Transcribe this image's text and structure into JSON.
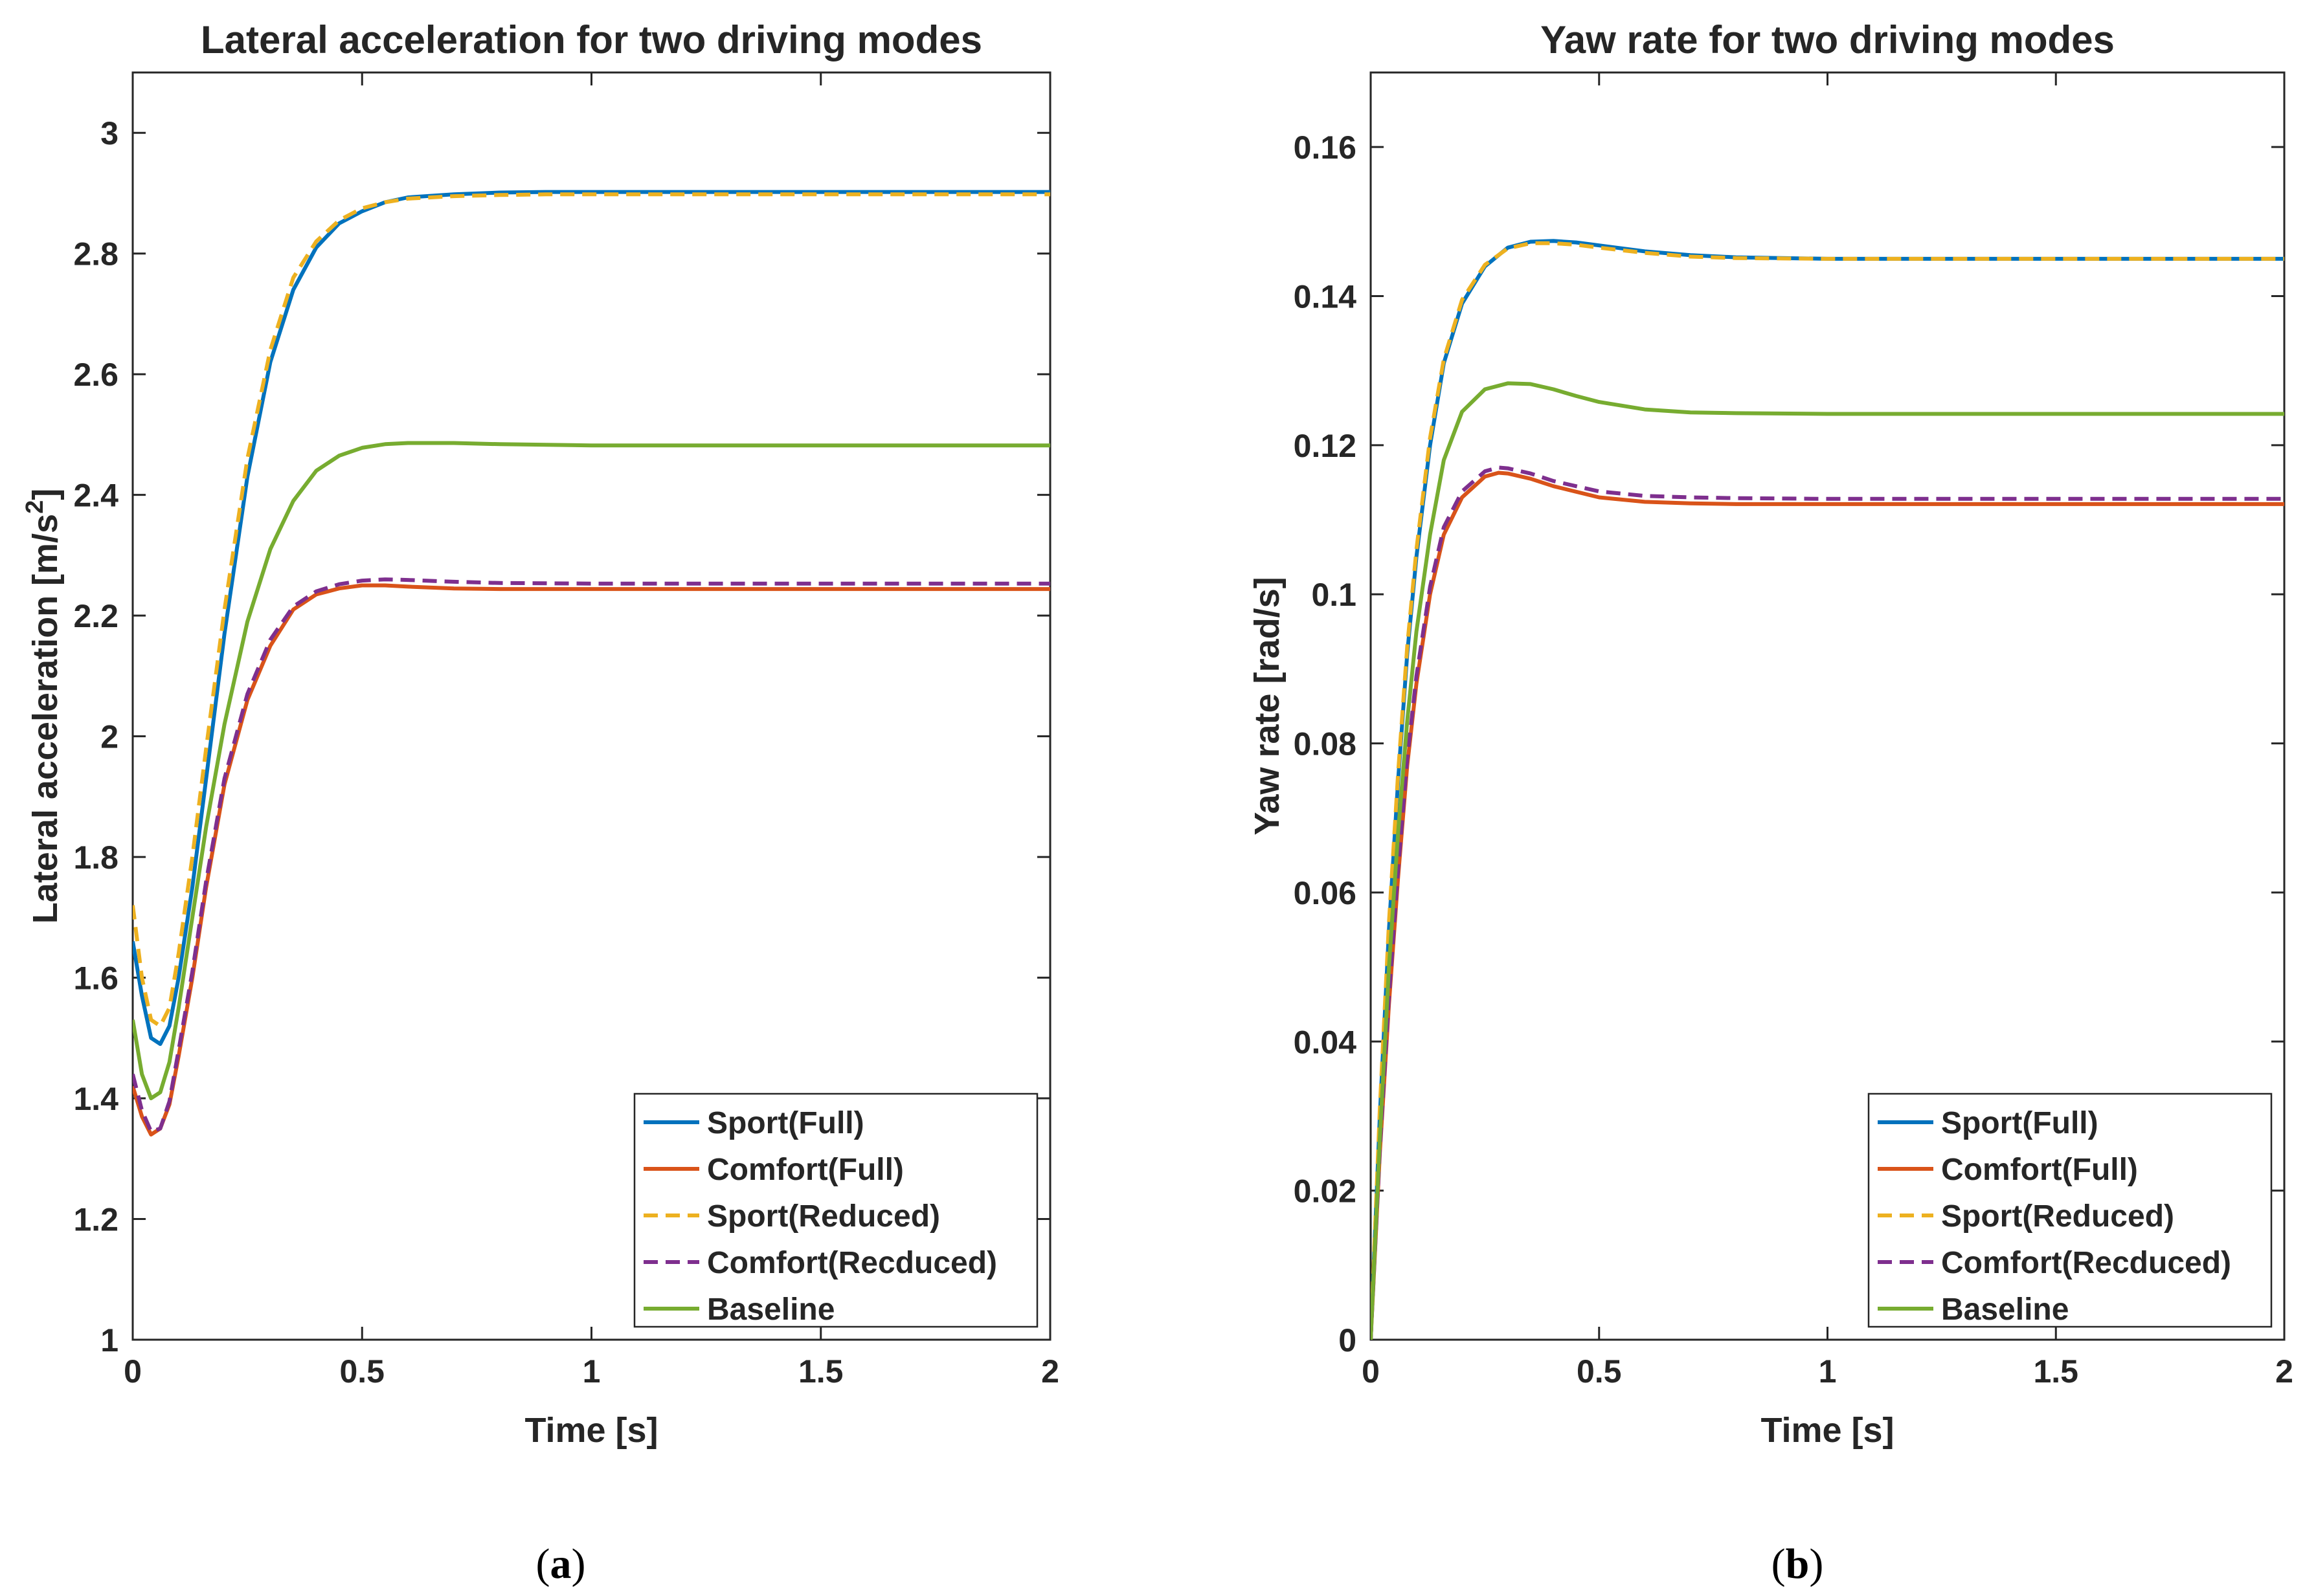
{
  "colors": {
    "sport_full": "#0072BD",
    "comfort_full": "#D95319",
    "sport_reduced": "#EDB120",
    "comfort_reduced": "#7E2F8E",
    "baseline": "#77AC30",
    "axis": "#262626"
  },
  "chart_data": [
    {
      "type": "line",
      "caption": {
        "open": "(",
        "letter": "a",
        "close": ")"
      },
      "title": "Lateral acceleration for two driving modes",
      "xlabel": "Time [s]",
      "ylabel_main": "Lateral acceleration [m/s",
      "ylabel_sup": "2",
      "ylabel_end": "]",
      "xlim": [
        0,
        2
      ],
      "ylim": [
        1,
        3.1
      ],
      "xticks": [
        0,
        0.5,
        1,
        1.5,
        2
      ],
      "xtick_labels": [
        "0",
        "0.5",
        "1",
        "1.5",
        "2"
      ],
      "yticks": [
        1,
        1.2,
        1.4,
        1.6,
        1.8,
        2,
        2.2,
        2.4,
        2.6,
        2.8,
        3
      ],
      "ytick_labels": [
        "1",
        "1.2",
        "1.4",
        "1.6",
        "1.8",
        "2",
        "2.2",
        "2.4",
        "2.6",
        "2.8",
        "3"
      ],
      "legend_position": "bottom-right",
      "series": [
        {
          "name": "Sport(Full)",
          "color_key": "sport_full",
          "dash": false,
          "x": [
            0,
            0.02,
            0.04,
            0.06,
            0.08,
            0.1,
            0.13,
            0.16,
            0.2,
            0.25,
            0.3,
            0.35,
            0.4,
            0.45,
            0.5,
            0.55,
            0.6,
            0.7,
            0.8,
            0.9,
            1.0,
            1.2,
            1.5,
            2.0
          ],
          "y": [
            1.66,
            1.57,
            1.5,
            1.49,
            1.52,
            1.6,
            1.75,
            1.93,
            2.17,
            2.43,
            2.62,
            2.74,
            2.81,
            2.85,
            2.87,
            2.885,
            2.893,
            2.898,
            2.901,
            2.902,
            2.902,
            2.902,
            2.902,
            2.902
          ]
        },
        {
          "name": "Comfort(Full)",
          "color_key": "comfort_full",
          "dash": false,
          "x": [
            0,
            0.02,
            0.04,
            0.06,
            0.08,
            0.1,
            0.13,
            0.16,
            0.2,
            0.25,
            0.3,
            0.35,
            0.4,
            0.45,
            0.5,
            0.55,
            0.6,
            0.7,
            0.8,
            1.0,
            1.5,
            2.0
          ],
          "y": [
            1.42,
            1.37,
            1.34,
            1.35,
            1.39,
            1.47,
            1.6,
            1.75,
            1.92,
            2.06,
            2.15,
            2.21,
            2.235,
            2.245,
            2.25,
            2.25,
            2.248,
            2.245,
            2.244,
            2.244,
            2.244,
            2.244
          ]
        },
        {
          "name": "Sport(Reduced)",
          "color_key": "sport_reduced",
          "dash": true,
          "x": [
            0,
            0.02,
            0.04,
            0.06,
            0.08,
            0.1,
            0.13,
            0.16,
            0.2,
            0.25,
            0.3,
            0.35,
            0.4,
            0.45,
            0.5,
            0.55,
            0.6,
            0.7,
            0.8,
            0.9,
            1.0,
            1.2,
            1.5,
            2.0
          ],
          "y": [
            1.72,
            1.6,
            1.53,
            1.52,
            1.55,
            1.64,
            1.8,
            1.98,
            2.21,
            2.46,
            2.64,
            2.76,
            2.82,
            2.855,
            2.875,
            2.885,
            2.891,
            2.895,
            2.897,
            2.898,
            2.898,
            2.898,
            2.898,
            2.898
          ]
        },
        {
          "name": "Comfort(Recduced)",
          "color_key": "comfort_reduced",
          "dash": true,
          "x": [
            0,
            0.02,
            0.04,
            0.06,
            0.08,
            0.1,
            0.13,
            0.16,
            0.2,
            0.25,
            0.3,
            0.35,
            0.4,
            0.45,
            0.5,
            0.55,
            0.6,
            0.7,
            0.8,
            1.0,
            1.5,
            2.0
          ],
          "y": [
            1.44,
            1.38,
            1.345,
            1.35,
            1.395,
            1.48,
            1.61,
            1.76,
            1.93,
            2.07,
            2.16,
            2.215,
            2.24,
            2.252,
            2.258,
            2.26,
            2.259,
            2.256,
            2.254,
            2.253,
            2.253,
            2.253
          ]
        },
        {
          "name": "Baseline",
          "color_key": "baseline",
          "dash": false,
          "x": [
            0,
            0.02,
            0.04,
            0.06,
            0.08,
            0.1,
            0.13,
            0.16,
            0.2,
            0.25,
            0.3,
            0.35,
            0.4,
            0.45,
            0.5,
            0.55,
            0.6,
            0.7,
            0.8,
            1.0,
            1.5,
            2.0
          ],
          "y": [
            1.53,
            1.44,
            1.4,
            1.41,
            1.46,
            1.55,
            1.7,
            1.85,
            2.02,
            2.19,
            2.31,
            2.39,
            2.44,
            2.465,
            2.478,
            2.484,
            2.486,
            2.486,
            2.484,
            2.482,
            2.482,
            2.482
          ]
        }
      ]
    },
    {
      "type": "line",
      "caption": {
        "open": "(",
        "letter": "b",
        "close": ")"
      },
      "title": "Yaw rate for two driving modes",
      "xlabel": "Time [s]",
      "ylabel_main": "Yaw rate [rad/s]",
      "ylabel_sup": "",
      "ylabel_end": "",
      "xlim": [
        0,
        2
      ],
      "ylim": [
        0,
        0.17
      ],
      "xticks": [
        0,
        0.5,
        1,
        1.5,
        2
      ],
      "xtick_labels": [
        "0",
        "0.5",
        "1",
        "1.5",
        "2"
      ],
      "yticks": [
        0,
        0.02,
        0.04,
        0.06,
        0.08,
        0.1,
        0.12,
        0.14,
        0.16
      ],
      "ytick_labels": [
        "0",
        "0.02",
        "0.04",
        "0.06",
        "0.08",
        "0.1",
        "0.12",
        "0.14",
        "0.16"
      ],
      "legend_position": "bottom-right",
      "series": [
        {
          "name": "Sport(Full)",
          "color_key": "sport_full",
          "dash": false,
          "x": [
            0,
            0.02,
            0.04,
            0.06,
            0.08,
            0.1,
            0.13,
            0.16,
            0.2,
            0.25,
            0.3,
            0.35,
            0.4,
            0.45,
            0.5,
            0.6,
            0.7,
            0.8,
            1.0,
            1.5,
            2.0
          ],
          "y": [
            0,
            0.03,
            0.055,
            0.075,
            0.092,
            0.105,
            0.12,
            0.131,
            0.139,
            0.144,
            0.1465,
            0.1473,
            0.1474,
            0.1472,
            0.1468,
            0.146,
            0.1455,
            0.1452,
            0.145,
            0.145,
            0.145
          ]
        },
        {
          "name": "Comfort(Full)",
          "color_key": "comfort_full",
          "dash": false,
          "x": [
            0,
            0.02,
            0.04,
            0.06,
            0.08,
            0.1,
            0.13,
            0.16,
            0.2,
            0.25,
            0.28,
            0.3,
            0.35,
            0.4,
            0.5,
            0.6,
            0.7,
            0.8,
            1.0,
            1.5,
            2.0
          ],
          "y": [
            0,
            0.025,
            0.045,
            0.062,
            0.077,
            0.088,
            0.1,
            0.108,
            0.113,
            0.1158,
            0.1163,
            0.1162,
            0.1155,
            0.1145,
            0.113,
            0.1124,
            0.1122,
            0.1121,
            0.1121,
            0.1121,
            0.1121
          ]
        },
        {
          "name": "Sport(Reduced)",
          "color_key": "sport_reduced",
          "dash": true,
          "x": [
            0,
            0.02,
            0.04,
            0.06,
            0.08,
            0.1,
            0.13,
            0.16,
            0.2,
            0.25,
            0.3,
            0.35,
            0.4,
            0.45,
            0.5,
            0.6,
            0.7,
            0.8,
            1.0,
            1.5,
            2.0
          ],
          "y": [
            0,
            0.031,
            0.056,
            0.076,
            0.093,
            0.106,
            0.121,
            0.1315,
            0.1395,
            0.1442,
            0.1464,
            0.1471,
            0.1471,
            0.1469,
            0.1465,
            0.1458,
            0.1453,
            0.1451,
            0.145,
            0.145,
            0.145
          ]
        },
        {
          "name": "Comfort(Recduced)",
          "color_key": "comfort_reduced",
          "dash": true,
          "x": [
            0,
            0.02,
            0.04,
            0.06,
            0.08,
            0.1,
            0.13,
            0.16,
            0.2,
            0.25,
            0.28,
            0.3,
            0.35,
            0.4,
            0.5,
            0.6,
            0.7,
            0.8,
            1.0,
            1.5,
            2.0
          ],
          "y": [
            0,
            0.0255,
            0.046,
            0.063,
            0.078,
            0.089,
            0.101,
            0.109,
            0.1138,
            0.1165,
            0.117,
            0.1169,
            0.1162,
            0.1152,
            0.1138,
            0.1132,
            0.113,
            0.1129,
            0.1128,
            0.1128,
            0.1128
          ]
        },
        {
          "name": "Baseline",
          "color_key": "baseline",
          "dash": false,
          "x": [
            0,
            0.02,
            0.04,
            0.06,
            0.08,
            0.1,
            0.13,
            0.16,
            0.2,
            0.25,
            0.3,
            0.35,
            0.4,
            0.45,
            0.5,
            0.6,
            0.7,
            0.8,
            1.0,
            1.5,
            2.0
          ],
          "y": [
            0,
            0.027,
            0.05,
            0.068,
            0.083,
            0.095,
            0.108,
            0.118,
            0.1245,
            0.1275,
            0.1283,
            0.1282,
            0.1275,
            0.1266,
            0.1258,
            0.1248,
            0.1244,
            0.1243,
            0.1242,
            0.1242,
            0.1242
          ]
        }
      ]
    }
  ]
}
